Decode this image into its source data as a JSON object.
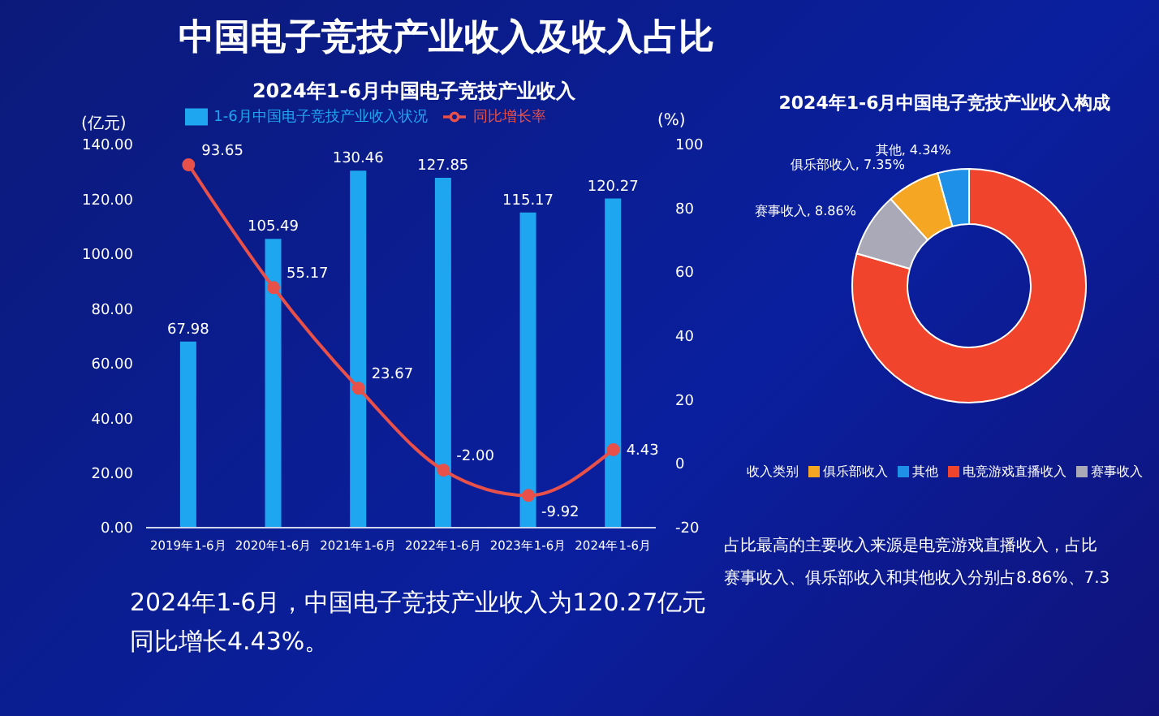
{
  "chart_data": [
    {
      "type": "bar",
      "title": "中国电子竞技产业收入及收入占比",
      "subtitle": "2024年1-6月中国电子竞技产业收入",
      "ylabel": "(亿元)",
      "y2label": "(%)",
      "categories": [
        "2019年1-6月",
        "2020年1-6月",
        "2021年1-6月",
        "2022年1-6月",
        "2023年1-6月",
        "2024年1-6月"
      ],
      "series": [
        {
          "name": "1-6月中国电子竞技产业收入状况",
          "type": "bar",
          "color": "#1ea7f0",
          "values": [
            67.98,
            105.49,
            130.46,
            127.85,
            115.17,
            120.27
          ],
          "value_labels": [
            "67.98",
            "105.49",
            "130.46",
            "127.85",
            "115.17",
            "120.27"
          ]
        },
        {
          "name": "同比增长率",
          "type": "line",
          "axis": "y2",
          "color": "#e8504a",
          "values": [
            93.65,
            55.17,
            23.67,
            -2.0,
            -9.92,
            4.43
          ],
          "value_labels": [
            "93.65",
            "55.17",
            "23.67",
            "-2.00",
            "-9.92",
            "4.43"
          ]
        }
      ],
      "ylim": [
        0,
        140
      ],
      "yticks": [
        {
          "value": 0,
          "label": "0.00"
        },
        {
          "value": 20,
          "label": "20.00"
        },
        {
          "value": 40,
          "label": "40.00"
        },
        {
          "value": 60,
          "label": "60.00"
        },
        {
          "value": 80,
          "label": "80.00"
        },
        {
          "value": 100,
          "label": "100.00"
        },
        {
          "value": 120,
          "label": "120.00"
        },
        {
          "value": 140,
          "label": "140.00"
        }
      ],
      "y2lim": [
        -20,
        100
      ],
      "y2ticks": [
        -20,
        0,
        20,
        40,
        60,
        80,
        100
      ],
      "legend": "top",
      "marker": "circle",
      "grid": false,
      "annotations": [
        "2024年1-6月，中国电子竞技产业收入为120.27亿元",
        "同比增长4.43%。"
      ]
    },
    {
      "type": "donut",
      "title": "2024年1-6月中国电子竞技产业收入构成",
      "legend_title": "收入类别",
      "categories": [
        "电竞游戏直播收入",
        "赛事收入",
        "俱乐部收入",
        "其他"
      ],
      "values": [
        79.45,
        8.86,
        7.35,
        4.34
      ],
      "colors": [
        "#f0442c",
        "#a9a9b8",
        "#f5a623",
        "#1e90e8"
      ],
      "value_labels": [
        null,
        "赛事收入, 8.86%",
        "俱乐部收入, 7.35%",
        "其他, 4.34%"
      ],
      "legend": "bottom",
      "annotations": [
        "占比最高的主要收入来源是电竞游戏直播收入，占比",
        "赛事收入、俱乐部收入和其他收入分别占8.86%、7.3"
      ]
    }
  ]
}
